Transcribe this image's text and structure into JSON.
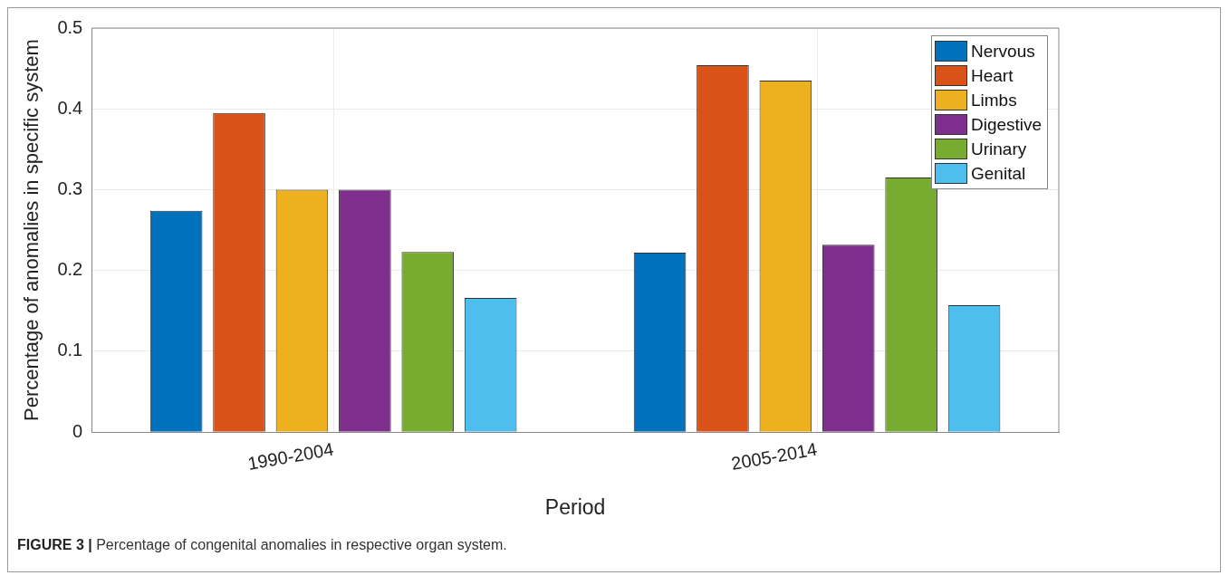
{
  "chart_data": {
    "type": "bar",
    "xlabel": "Period",
    "ylabel": "Percentage of anomalies in specific system",
    "categories": [
      "1990-2004",
      "2005-2014"
    ],
    "series": [
      {
        "name": "Nervous",
        "color": "#0072bd",
        "values": [
          0.274,
          0.222
        ]
      },
      {
        "name": "Heart",
        "color": "#d95319",
        "values": [
          0.395,
          0.454
        ]
      },
      {
        "name": "Limbs",
        "color": "#edb120",
        "values": [
          0.3,
          0.435
        ]
      },
      {
        "name": "Digestive",
        "color": "#7e2f8e",
        "values": [
          0.3,
          0.232
        ]
      },
      {
        "name": "Urinary",
        "color": "#77ac30",
        "values": [
          0.223,
          0.315
        ]
      },
      {
        "name": "Genital",
        "color": "#4dbeee",
        "values": [
          0.166,
          0.157
        ]
      }
    ],
    "ylim": [
      0,
      0.5
    ],
    "yticks": [
      0,
      0.1,
      0.2,
      0.3,
      0.4,
      0.5
    ],
    "grid": true,
    "legend": "top right",
    "annotations": [
      "FIGURE 3 | Percentage of congenital anomalies in respective organ system."
    ]
  }
}
